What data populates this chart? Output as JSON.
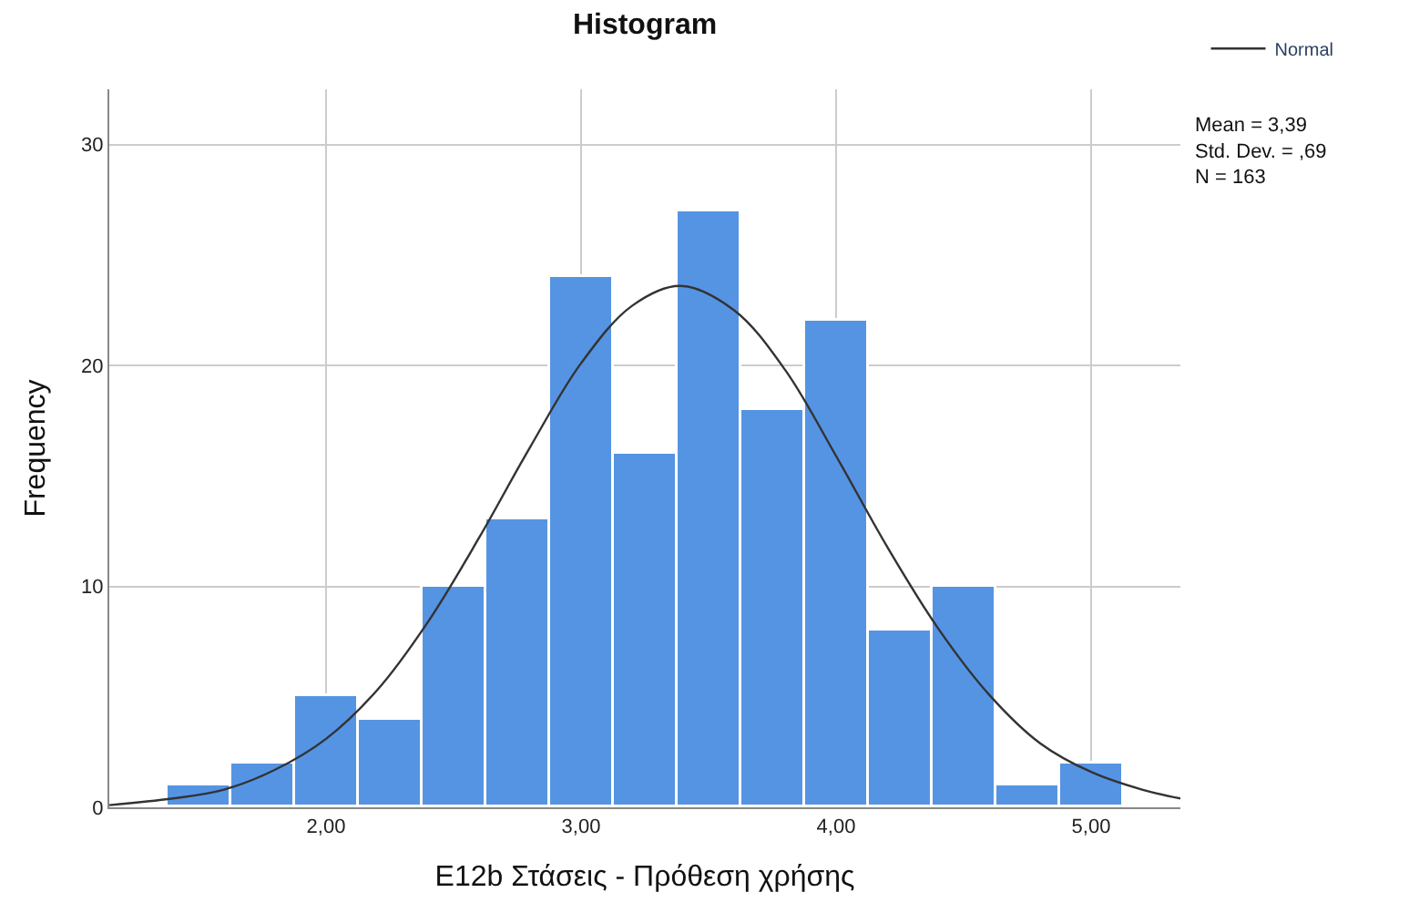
{
  "chart_data": {
    "type": "histogram",
    "title": "Histogram",
    "xlabel": "E12b Στάσεις - Πρόθεση χρήσης",
    "ylabel": "Frequency",
    "bins": [
      1.375,
      1.625,
      1.875,
      2.125,
      2.375,
      2.625,
      2.875,
      3.125,
      3.375,
      3.625,
      3.875,
      4.125,
      4.375,
      4.625,
      4.875,
      5.125
    ],
    "values": [
      1,
      2,
      5,
      4,
      10,
      13,
      24,
      16,
      27,
      18,
      22,
      8,
      10,
      1,
      2
    ],
    "color": "#5594e3",
    "series": [
      {
        "type": "line",
        "name": "Normal",
        "color": "#333333",
        "x": [
          1.15,
          1.4,
          1.6,
          1.8,
          2.0,
          2.2,
          2.4,
          2.6,
          2.8,
          3.0,
          3.2,
          3.39,
          3.6,
          3.8,
          4.0,
          4.2,
          4.4,
          4.6,
          4.8,
          5.0,
          5.2,
          5.35
        ],
        "values": [
          0.1,
          0.4,
          0.8,
          1.7,
          3.1,
          5.3,
          8.4,
          12.2,
          16.3,
          20.1,
          22.7,
          23.6,
          22.5,
          19.8,
          15.9,
          11.8,
          8.1,
          5.1,
          2.9,
          1.6,
          0.8,
          0.4
        ]
      }
    ],
    "xlim": [
      1.15,
      5.35
    ],
    "xticks": [
      {
        "value": 2,
        "label": "2,00"
      },
      {
        "value": 3,
        "label": "3,00"
      },
      {
        "value": 4,
        "label": "4,00"
      },
      {
        "value": 5,
        "label": "5,00"
      }
    ],
    "ylim": [
      0,
      32.5
    ],
    "yticks": [
      0,
      10,
      20,
      30
    ],
    "grid": true,
    "legend": "top right",
    "marker": "none",
    "line_style": "solid",
    "annotations": [
      "Mean = 3,39\nStd. Dev. = ,69\nN = 163"
    ]
  }
}
